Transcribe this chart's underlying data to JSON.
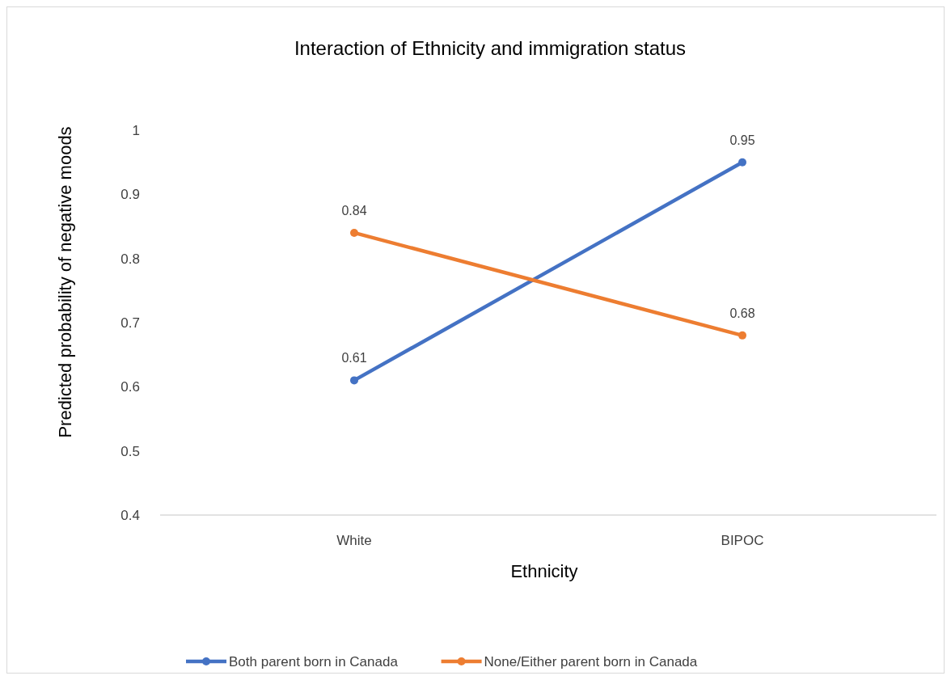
{
  "chart_data": {
    "type": "line",
    "title": "Interaction of Ethnicity and immigration status",
    "xlabel": "Ethnicity",
    "ylabel": "Predicted probability of negative moods",
    "categories": [
      "White",
      "BIPOC"
    ],
    "series": [
      {
        "name": "Both parent born in Canada",
        "color": "#4472c4",
        "values": [
          0.61,
          0.95
        ]
      },
      {
        "name": "None/Either parent born in Canada",
        "color": "#ed7d31",
        "values": [
          0.84,
          0.68
        ]
      }
    ],
    "ylim": [
      0.4,
      1
    ],
    "yticks": [
      0.4,
      0.5,
      0.6,
      0.7,
      0.8,
      0.9,
      1
    ],
    "data_labels": true,
    "marker": "circle",
    "legend": "bottom",
    "grid": false
  }
}
